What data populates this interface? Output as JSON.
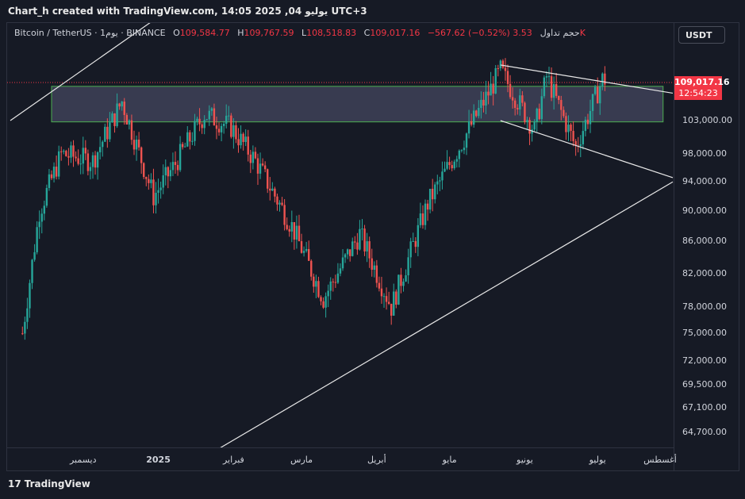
{
  "header": {
    "caption": "Chart_h created with TradingView.com, يوليو 04, 2025 14:05 UTC+3"
  },
  "legend": {
    "symbol": "Bitcoin / TetherUS · 1يوم · BINANCE",
    "o_label": "O",
    "o_value": "109,584.77",
    "h_label": "H",
    "h_value": "109,767.59",
    "l_label": "L",
    "l_value": "108,518.83",
    "c_label": "C",
    "c_value": "109,017.16",
    "change": "−567.62 (−0.52%)",
    "volume_label": "حجم تداول",
    "volume_value": "3.53K"
  },
  "currency_button": "USDT",
  "last_price": {
    "price": "109,017.16",
    "countdown": "12:54:23"
  },
  "colors": {
    "background": "#161a25",
    "up": "#26a69a",
    "down": "#ef5350",
    "zone_border": "#4caf50",
    "price_label": "#f23645"
  },
  "footer": {
    "brand": "TradingView",
    "logo": "17"
  },
  "chart_data": {
    "type": "candlestick",
    "title": "Bitcoin / TetherUS · 1يوم · BINANCE",
    "y_scale": "log",
    "y_ticks": [
      "103,000.00",
      "98,000.00",
      "94,000.00",
      "90,000.00",
      "86,000.00",
      "82,000.00",
      "78,000.00",
      "75,000.00",
      "72,000.00",
      "69,500.00",
      "67,100.00",
      "64,700.00"
    ],
    "x_ticks": [
      "ديسمبر",
      "2025",
      "فبراير",
      "مارس",
      "أبريل",
      "مايو",
      "يونيو",
      "يوليو",
      "أغسطس"
    ],
    "last_close": 109017.16,
    "zone": {
      "low": 102800,
      "high": 108400
    },
    "trendlines": [
      {
        "name": "upper-channel",
        "from": [
          "2024-11-01",
          103000
        ],
        "to": [
          "2025-01-10",
          123000
        ]
      },
      {
        "name": "lower-channel",
        "from": [
          "2024-12-25",
          59000
        ],
        "to": [
          "2025-08-01",
          94000
        ]
      },
      {
        "name": "wedge-top",
        "from": [
          "2025-05-22",
          111900
        ],
        "to": [
          "2025-08-01",
          107300
        ]
      },
      {
        "name": "wedge-bottom",
        "from": [
          "2025-05-22",
          103000
        ],
        "to": [
          "2025-08-01",
          94600
        ]
      }
    ],
    "approx_daily_closes": [
      {
        "date": "2024-11-06",
        "close": 75000
      },
      {
        "date": "2024-11-13",
        "close": 90000
      },
      {
        "date": "2024-11-22",
        "close": 98000
      },
      {
        "date": "2024-12-05",
        "close": 97000
      },
      {
        "date": "2024-12-17",
        "close": 106000
      },
      {
        "date": "2024-12-30",
        "close": 92000
      },
      {
        "date": "2025-01-07",
        "close": 96000
      },
      {
        "date": "2025-01-20",
        "close": 104000
      },
      {
        "date": "2025-01-31",
        "close": 102000
      },
      {
        "date": "2025-02-10",
        "close": 97000
      },
      {
        "date": "2025-02-25",
        "close": 88000
      },
      {
        "date": "2025-03-10",
        "close": 79000
      },
      {
        "date": "2025-03-25",
        "close": 87000
      },
      {
        "date": "2025-04-07",
        "close": 78000
      },
      {
        "date": "2025-04-22",
        "close": 91000
      },
      {
        "date": "2025-05-08",
        "close": 101000
      },
      {
        "date": "2025-05-22",
        "close": 111000
      },
      {
        "date": "2025-06-05",
        "close": 101500
      },
      {
        "date": "2025-06-10",
        "close": 110000
      },
      {
        "date": "2025-06-22",
        "close": 99000
      },
      {
        "date": "2025-07-03",
        "close": 109500
      }
    ]
  }
}
